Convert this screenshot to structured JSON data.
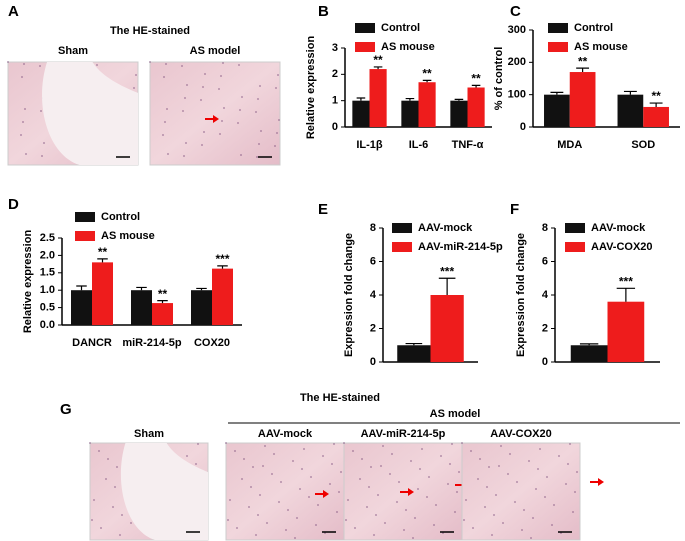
{
  "figures": [
    {
      "label": "A",
      "title": "The HE-stained",
      "images": [
        "Sham",
        "AS model"
      ]
    },
    {
      "label": "G",
      "title": "The HE-stained",
      "group": "AS model",
      "images": [
        "Sham",
        "AAV-mock",
        "AAV-miR-214-5p",
        "AAV-COX20"
      ]
    }
  ],
  "chart_data": [
    {
      "label": "B",
      "type": "bar",
      "ylabel": "Relative expression",
      "categories": [
        "IL-1β",
        "IL-6",
        "TNF-α"
      ],
      "series": [
        {
          "name": "Control",
          "color": "#111111",
          "values": [
            1,
            1,
            1
          ],
          "errors": [
            0.1,
            0.08,
            0.05
          ]
        },
        {
          "name": "AS mouse",
          "color": "#ee1c1c",
          "values": [
            2.2,
            1.7,
            1.5
          ],
          "errors": [
            0.08,
            0.07,
            0.08
          ],
          "stars": [
            "**",
            "**",
            "**"
          ]
        }
      ],
      "ylim": [
        0,
        3
      ],
      "yticks": [
        0,
        1,
        2,
        3
      ]
    },
    {
      "label": "C",
      "type": "bar",
      "ylabel": "% of control",
      "categories": [
        "MDA",
        "SOD"
      ],
      "series": [
        {
          "name": "Control",
          "color": "#111111",
          "values": [
            100,
            100
          ],
          "errors": [
            7,
            10
          ]
        },
        {
          "name": "AS mouse",
          "color": "#ee1c1c",
          "values": [
            170,
            62
          ],
          "errors": [
            12,
            12
          ],
          "stars": [
            "**",
            "**"
          ]
        }
      ],
      "ylim": [
        0,
        300
      ],
      "yticks": [
        0,
        100,
        200,
        300
      ]
    },
    {
      "label": "D",
      "type": "bar",
      "ylabel": "Relative expression",
      "categories": [
        "DANCR",
        "miR-214-5p",
        "COX20"
      ],
      "series": [
        {
          "name": "Control",
          "color": "#111111",
          "values": [
            1,
            1,
            1
          ],
          "errors": [
            0.12,
            0.08,
            0.05
          ]
        },
        {
          "name": "AS mouse",
          "color": "#ee1c1c",
          "values": [
            1.8,
            0.63,
            1.62
          ],
          "errors": [
            0.1,
            0.07,
            0.08
          ],
          "stars": [
            "**",
            "**",
            "***"
          ]
        }
      ],
      "ylim": [
        0,
        2.5
      ],
      "yticks": [
        {
          "value": 0,
          "label": "0.0"
        },
        0.5,
        {
          "value": 1,
          "label": "1.0"
        },
        1.5,
        {
          "value": 2,
          "label": "2.0"
        },
        2.5
      ]
    },
    {
      "label": "E",
      "type": "bar",
      "ylabel": "Expression fold change",
      "categories": [
        null
      ],
      "series": [
        {
          "name": "AAV-mock",
          "color": "#111111",
          "values": [
            1
          ],
          "errors": [
            0.1
          ]
        },
        {
          "name": "AAV-miR-214-5p",
          "color": "#ee1c1c",
          "values": [
            4
          ],
          "errors": [
            1
          ],
          "stars": [
            "***"
          ]
        }
      ],
      "ylim": [
        0,
        8
      ],
      "yticks": [
        0,
        2,
        4,
        6,
        8
      ]
    },
    {
      "label": "F",
      "type": "bar",
      "ylabel": "Expression fold change",
      "categories": [
        null
      ],
      "series": [
        {
          "name": "AAV-mock",
          "color": "#111111",
          "values": [
            1
          ],
          "errors": [
            0.08
          ]
        },
        {
          "name": "AAV-COX20",
          "color": "#ee1c1c",
          "values": [
            3.6
          ],
          "errors": [
            0.8
          ],
          "stars": [
            "***"
          ]
        }
      ],
      "ylim": [
        0,
        8
      ],
      "yticks": [
        0,
        2,
        4,
        6,
        8
      ]
    }
  ]
}
